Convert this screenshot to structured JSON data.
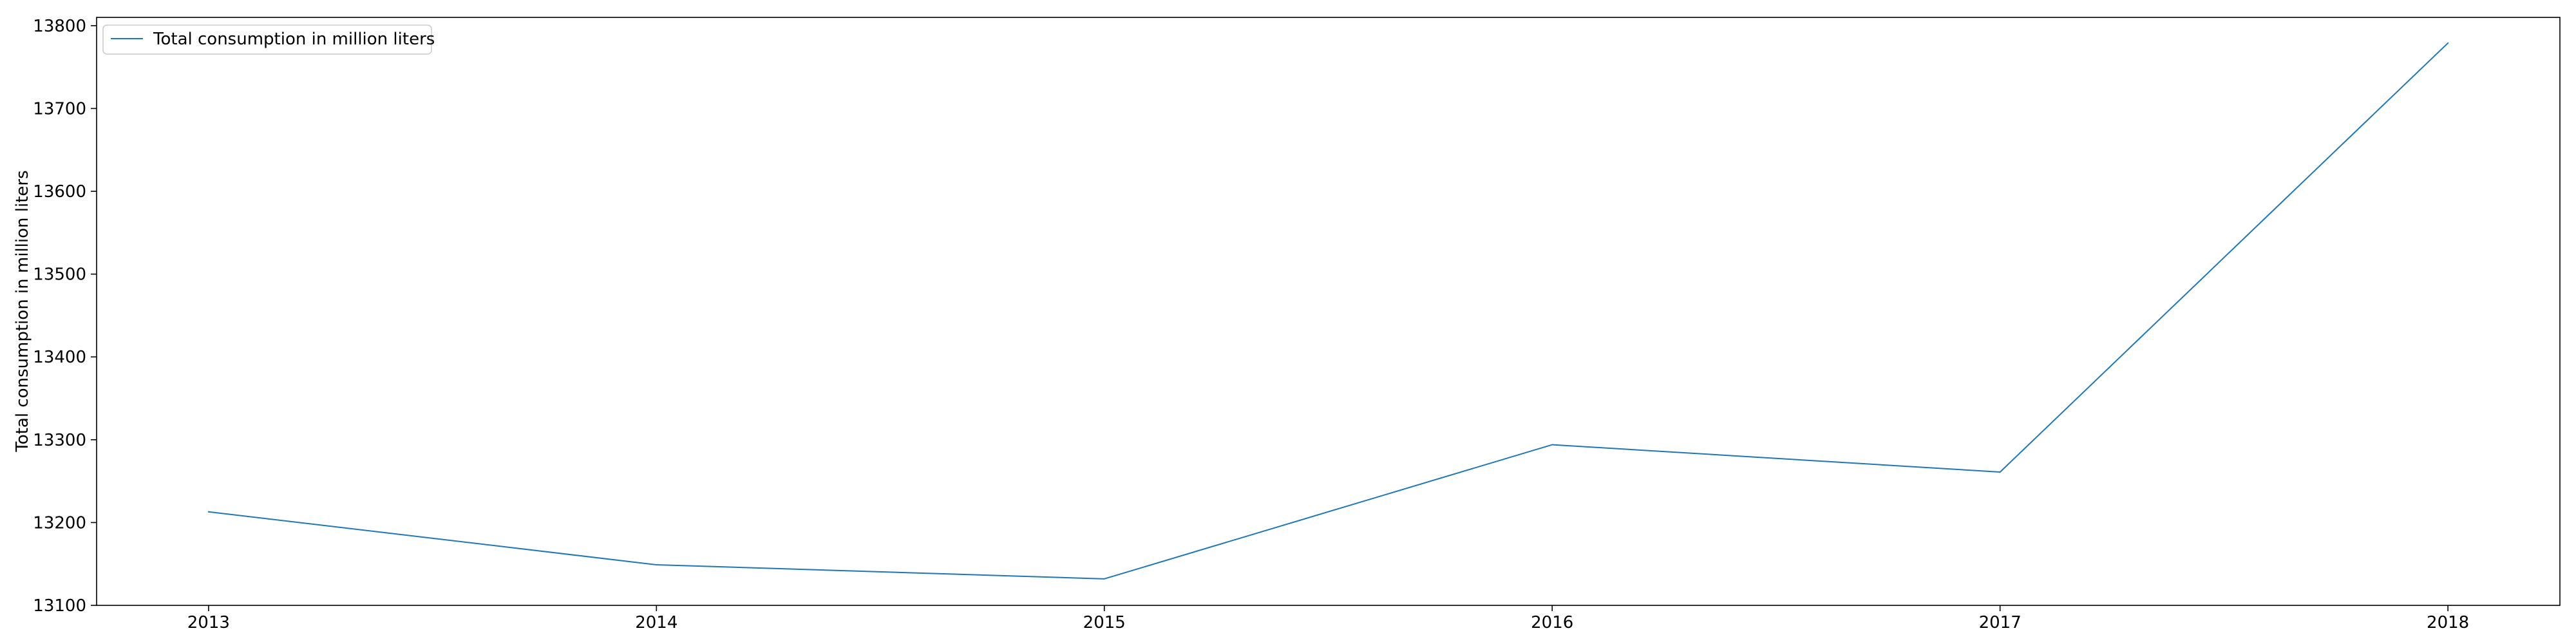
{
  "chart_data": {
    "type": "line",
    "x": [
      2013,
      2014,
      2015,
      2016,
      2017,
      2018
    ],
    "x_tick_labels": [
      "2013",
      "2014",
      "2015",
      "2016",
      "2017",
      "2018"
    ],
    "series": [
      {
        "name": "Total consumption in million liters",
        "color": "#1f77b4",
        "values": [
          13213,
          13149,
          13132,
          13294,
          13261,
          13779
        ]
      }
    ],
    "title": "",
    "xlabel": "",
    "ylabel": "Total consumption in million liters",
    "xlim": [
      2012.75,
      2018.25
    ],
    "ylim": [
      13100,
      13810
    ],
    "y_ticks": [
      13100,
      13200,
      13300,
      13400,
      13500,
      13600,
      13700,
      13800
    ],
    "y_tick_labels": [
      "13100",
      "13200",
      "13300",
      "13400",
      "13500",
      "13600",
      "13700",
      "13800"
    ],
    "grid": false,
    "legend_position": "top-left"
  }
}
